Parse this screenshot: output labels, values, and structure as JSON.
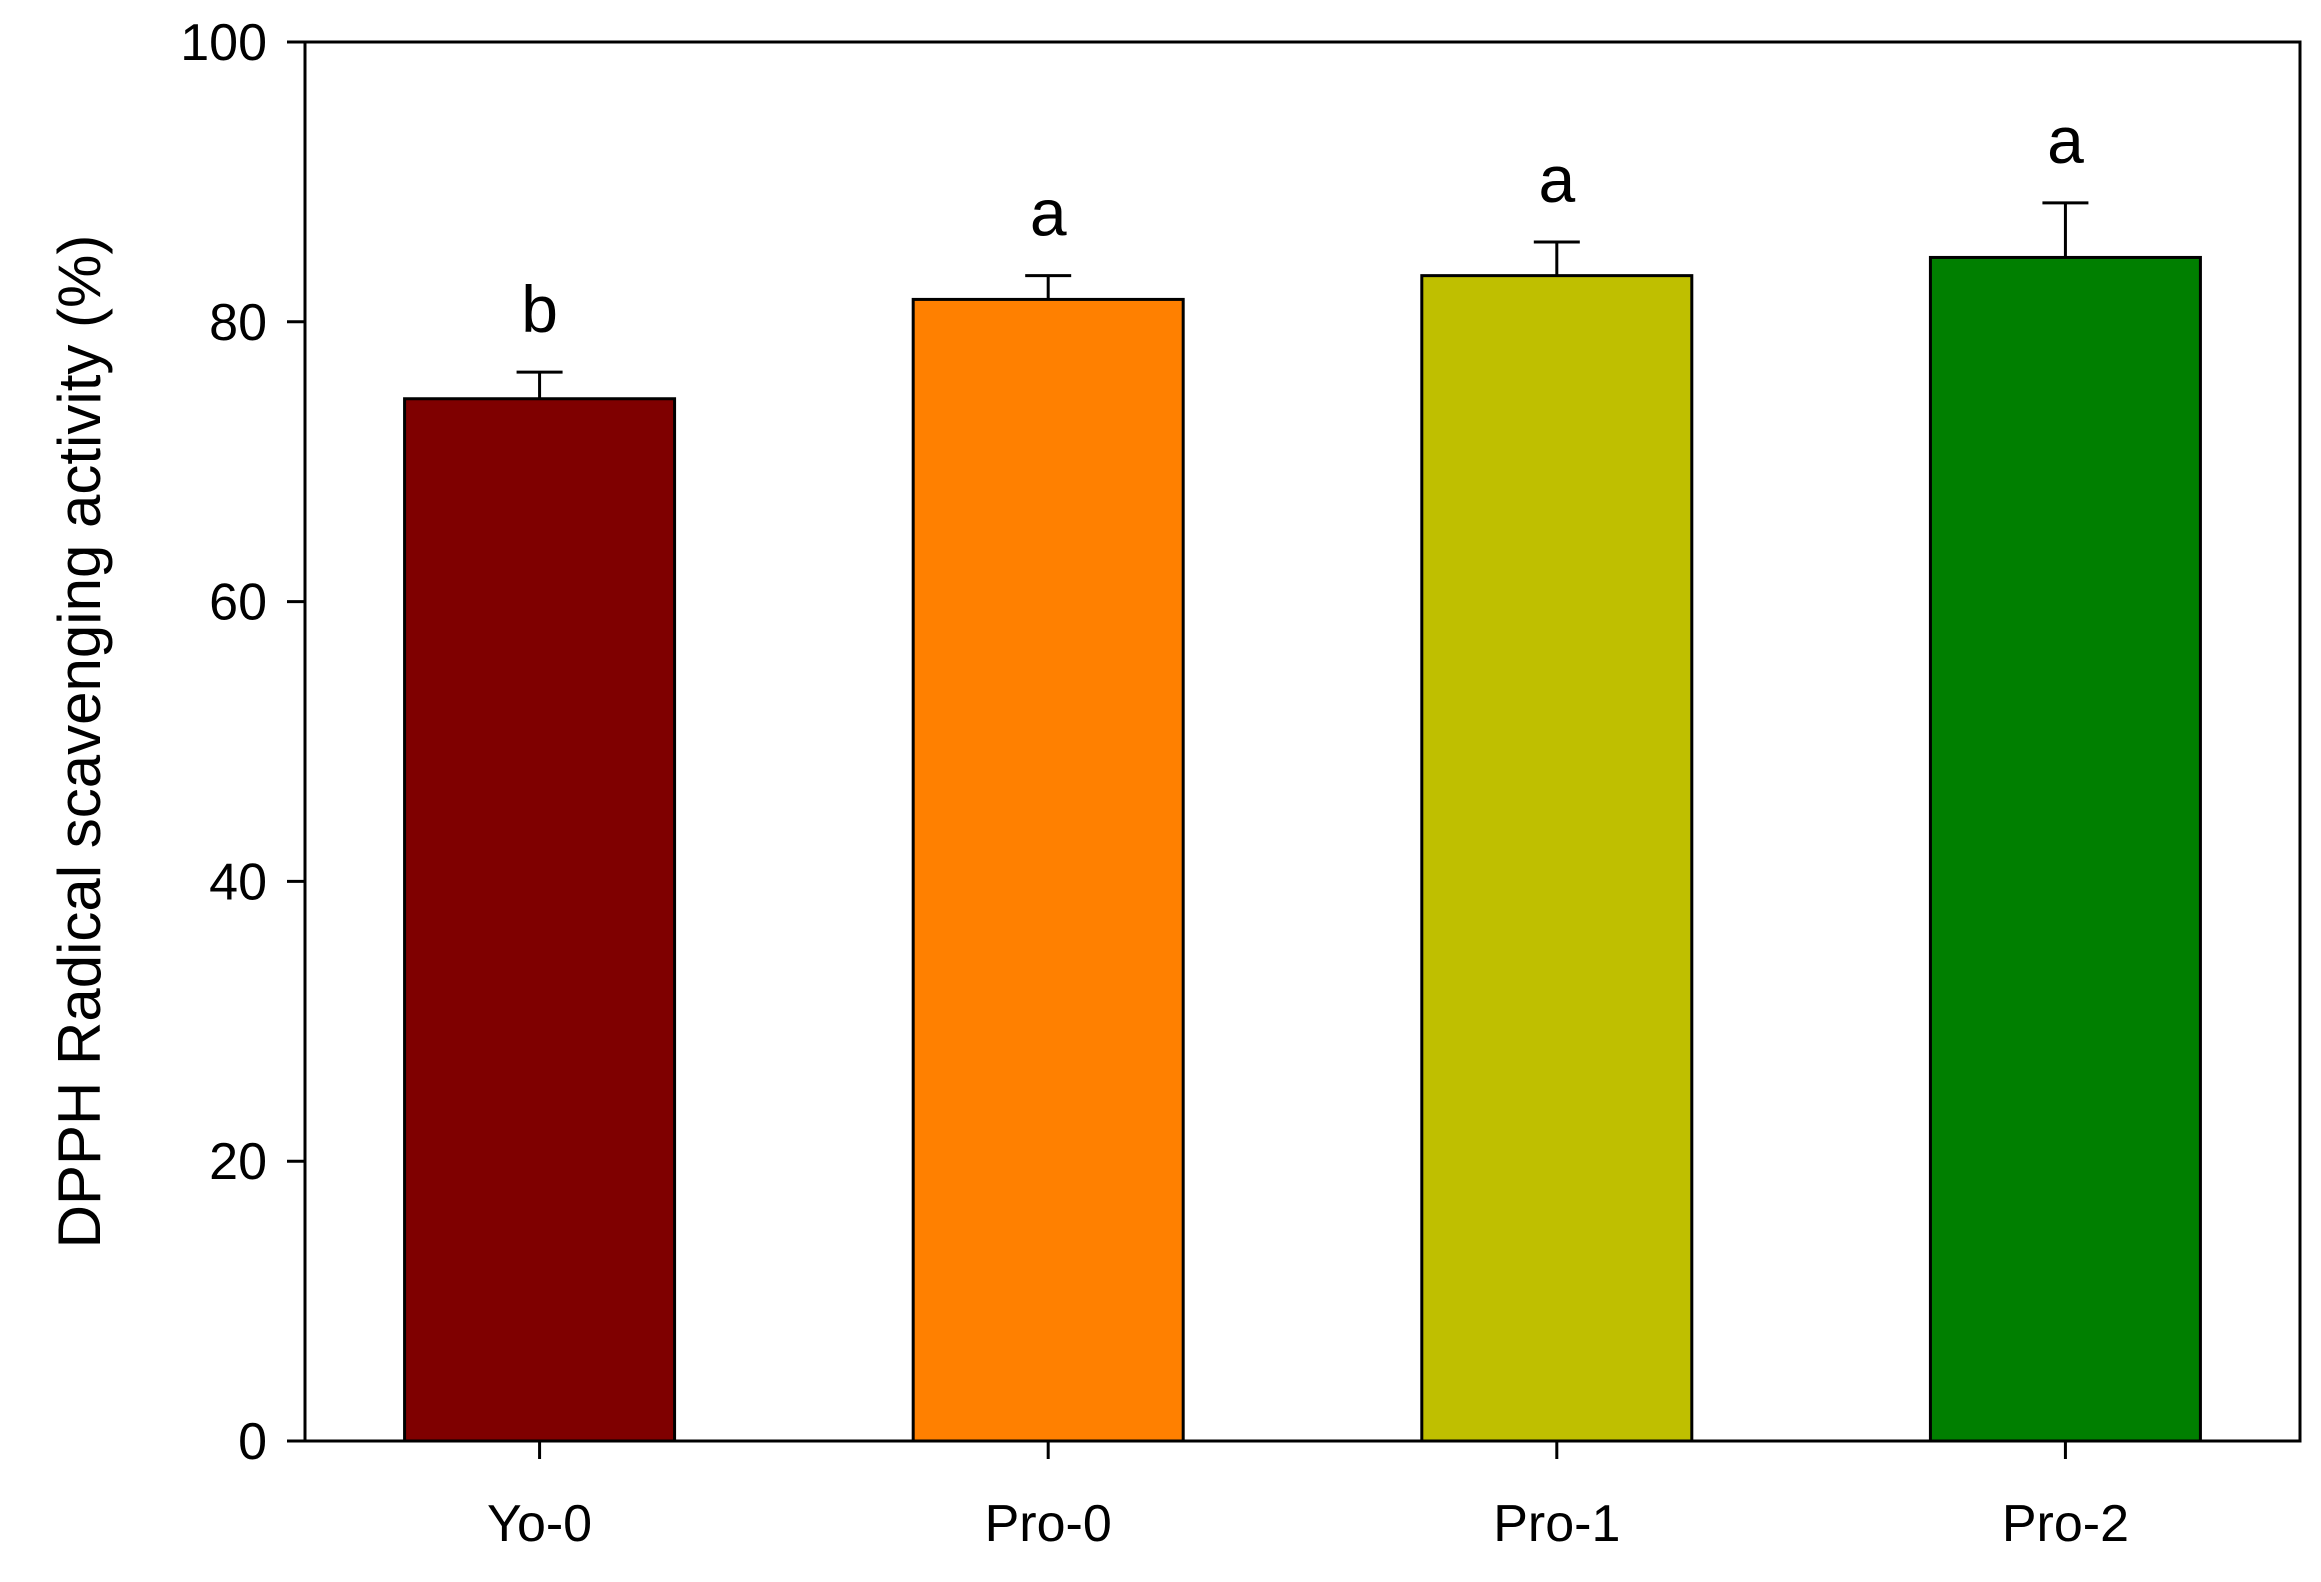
{
  "chart_data": {
    "type": "bar",
    "title": "",
    "xlabel": "",
    "ylabel": "DPPH Radical scavenging activity (%)",
    "ylim": [
      0,
      100
    ],
    "yticks": [
      0,
      20,
      40,
      60,
      80,
      100
    ],
    "grid": false,
    "legend": "none",
    "categories": [
      "Yo-0",
      "Pro-0",
      "Pro-1",
      "Pro-2"
    ],
    "values": [
      74.5,
      81.6,
      83.3,
      84.6
    ],
    "errors": [
      1.9,
      1.7,
      2.4,
      3.9
    ],
    "significance_labels": [
      "b",
      "a",
      "a",
      "a"
    ],
    "colors": [
      "#7f0000",
      "#ff8000",
      "#bfbf00",
      "#007f00"
    ]
  }
}
